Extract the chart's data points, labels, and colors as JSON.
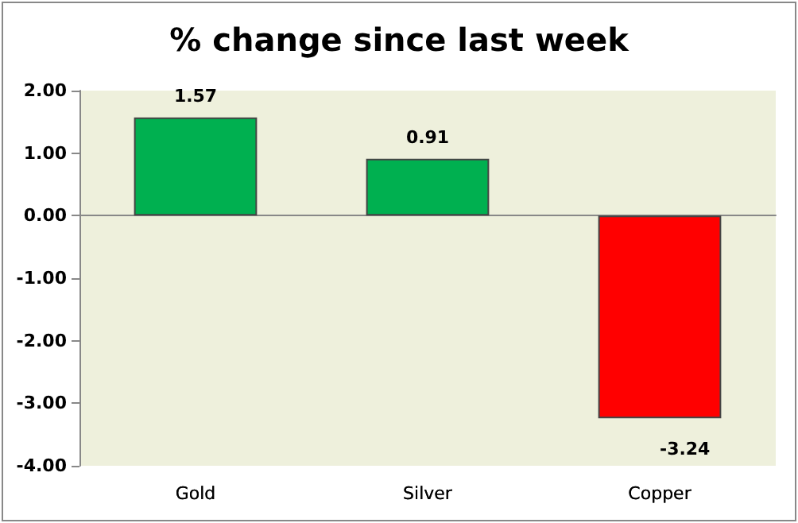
{
  "chart_data": {
    "type": "bar",
    "title": "% change since last week",
    "categories": [
      "Gold",
      "Silver",
      "Copper"
    ],
    "values": [
      1.57,
      0.91,
      -3.24
    ],
    "colors": [
      "#00b050",
      "#00b050",
      "#ff0000"
    ],
    "ylim": [
      -4,
      2
    ],
    "yticks": [
      {
        "value": -4,
        "label": "-4.00"
      },
      {
        "value": -3,
        "label": "-3.00"
      },
      {
        "value": -2,
        "label": "-2.00"
      },
      {
        "value": -1,
        "label": "-1.00"
      },
      {
        "value": 0,
        "label": "0.00"
      },
      {
        "value": 1,
        "label": "1.00"
      },
      {
        "value": 2,
        "label": "2.00"
      }
    ],
    "data_labels": true
  }
}
